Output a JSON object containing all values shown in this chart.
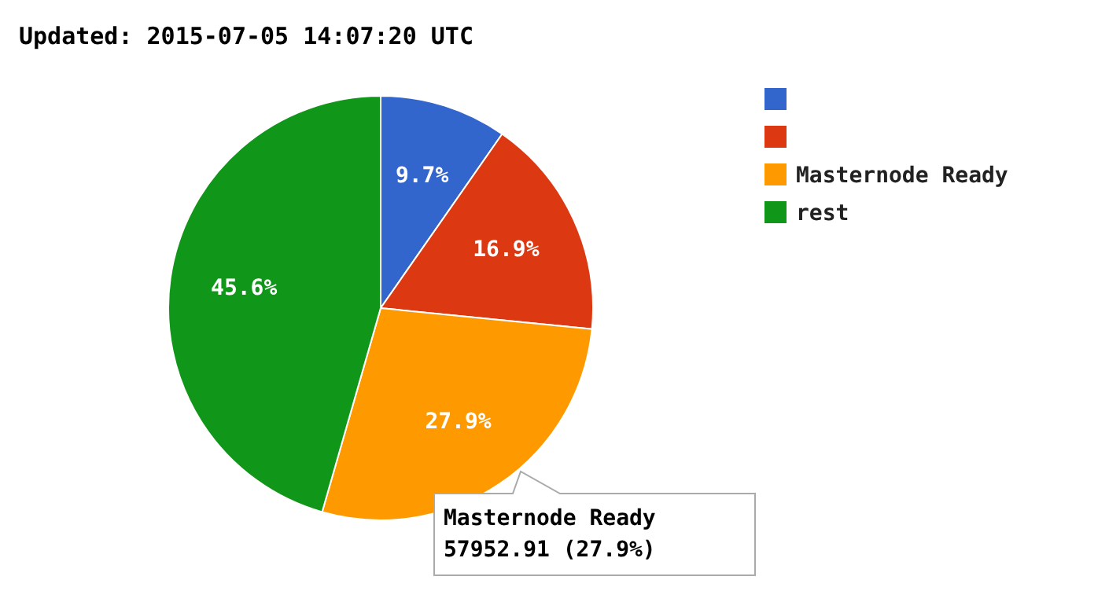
{
  "chart_data": {
    "type": "pie",
    "title": "Updated: 2015-07-05 14:07:20 UTC",
    "categories": [
      null,
      null,
      "Masternode Ready",
      "rest"
    ],
    "values": [
      9.7,
      16.9,
      27.9,
      45.6
    ],
    "colors": [
      "#3366cc",
      "#dc3912",
      "#ff9900",
      "#109618"
    ],
    "value_labels": [
      "9.7%",
      "16.9%",
      "27.9%",
      "45.6%"
    ],
    "legend": "right",
    "annotations": [
      "Masternode Ready\n57952.91 (27.9%)"
    ]
  }
}
